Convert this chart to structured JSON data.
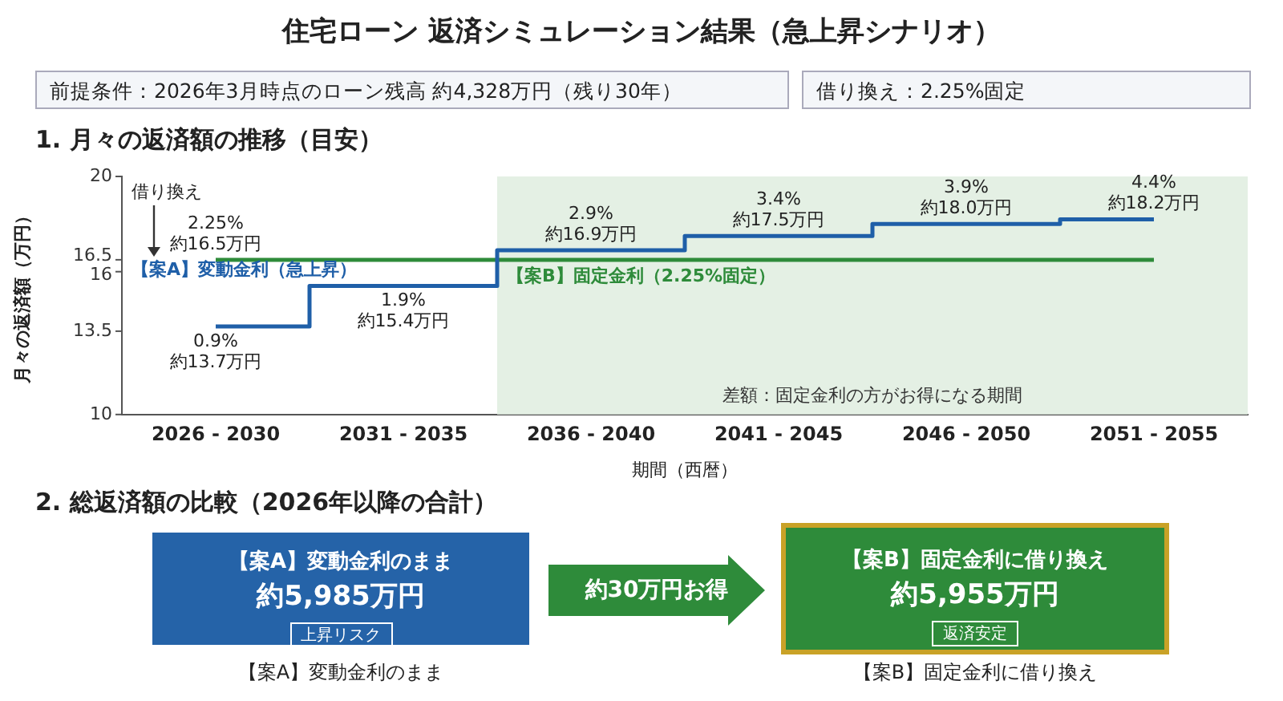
{
  "chart_data": {
    "type": "step",
    "title": "住宅ローン 返済シミュレーション結果（急上昇シナリオ）",
    "subtitle": "1. 月々の返済額の推移（目安）",
    "xlabel": "期間（西暦）",
    "ylabel": "月々の返済額（万円）",
    "categories": [
      "2026 - 2030",
      "2031 - 2035",
      "2036 - 2040",
      "2041 - 2045",
      "2046 - 2050",
      "2051 - 2055"
    ],
    "series": [
      {
        "name": "【案A】変動金利（急上昇）",
        "color": "#1f5fa8",
        "values": [
          13.7,
          15.4,
          16.9,
          17.5,
          18.0,
          18.2
        ],
        "value_labels": [
          "0.9%\n約13.7万円",
          "1.9%\n約15.4万円",
          "2.9%\n約16.9万円",
          "3.4%\n約17.5万円",
          "3.9%\n約18.0万円",
          "4.4%\n約18.2万円"
        ]
      },
      {
        "name": "【案B】固定金利（2.25%固定）",
        "color": "#2e8b3a",
        "values": [
          16.5,
          16.5,
          16.5,
          16.5,
          16.5,
          16.5
        ],
        "value_labels": [
          "2.25%\n約16.5万円",
          null,
          null,
          null,
          null,
          null
        ]
      }
    ],
    "ylim": [
      10,
      20
    ],
    "yticks": [
      10,
      13.5,
      16,
      16.5,
      20
    ],
    "marker": "none",
    "bands": [
      {
        "axis": "x",
        "from": "2036 - 2040",
        "to": "2051 - 2055",
        "label": "差額：固定金利の方がお得になる期間",
        "color": "#e4f0e4"
      }
    ],
    "annotations": [
      "前提条件：2026年3月時点のローン残高 約4,328万円（残り30年）",
      "借り換え：2.25%固定",
      "借り換え",
      "2. 総返済額の比較（2026年以降の合計）",
      "【案A】変動金利のまま",
      "約5,985万円",
      "上昇リスク",
      "約30万円お得",
      "【案B】固定金利に借り換え",
      "約5,955万円",
      "返済安定",
      "【案A】変動金利のまま",
      "【案B】固定金利に借り換え"
    ]
  }
}
